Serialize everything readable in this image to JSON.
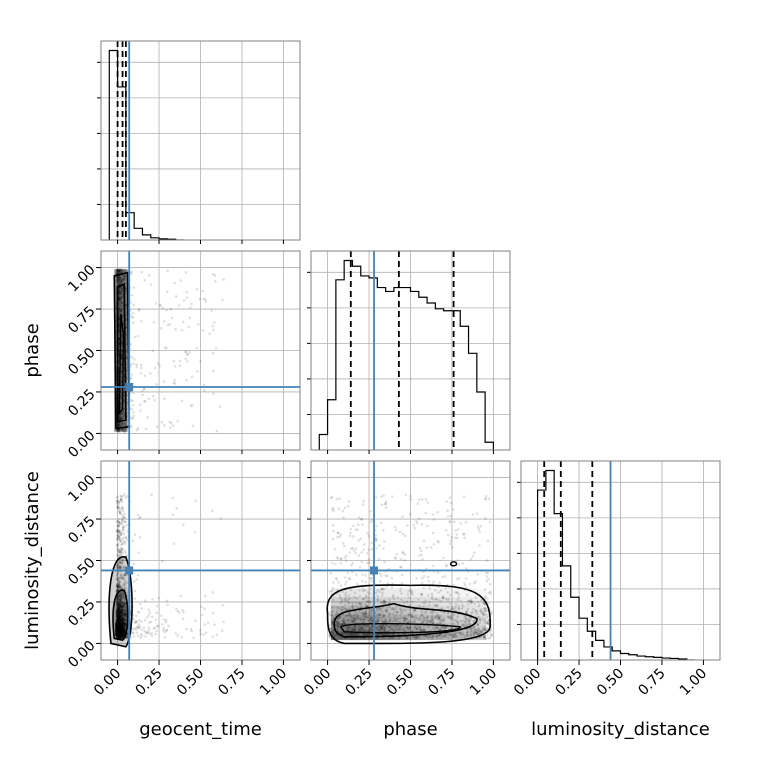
{
  "chart_data": {
    "type": "corner",
    "parameters": [
      "geocent_time",
      "phase",
      "luminosity_distance"
    ],
    "axis_labels": {
      "geocent_time": "geocent_time",
      "phase": "phase",
      "luminosity_distance": "luminosity_distance"
    },
    "tick_values": [
      0.0,
      0.25,
      0.5,
      0.75,
      1.0
    ],
    "tick_labels": [
      "0.00",
      "0.25",
      "0.50",
      "0.75",
      "1.00"
    ],
    "range": [
      -0.1,
      1.1
    ],
    "grid": true,
    "truths": {
      "geocent_time": 0.07,
      "phase": 0.28,
      "luminosity_distance": 0.44
    },
    "truth_color": "#4682b4",
    "quantiles": {
      "geocent_time": [
        0.0,
        0.03,
        0.05
      ],
      "phase": [
        0.14,
        0.43,
        0.76
      ],
      "luminosity_distance": [
        0.04,
        0.14,
        0.33
      ]
    },
    "histograms": {
      "geocent_time": {
        "bin_edges": [
          -0.05,
          0.0,
          0.05,
          0.1,
          0.15,
          0.2,
          0.25,
          0.3,
          0.35,
          0.4
        ],
        "counts": [
          5.2,
          4.2,
          0.75,
          0.32,
          0.14,
          0.06,
          0.03,
          0.02,
          0.0
        ]
      },
      "phase": {
        "bin_edges": [
          -0.05,
          0.0,
          0.05,
          0.1,
          0.15,
          0.2,
          0.25,
          0.3,
          0.35,
          0.4,
          0.45,
          0.5,
          0.55,
          0.6,
          0.65,
          0.7,
          0.75,
          0.8,
          0.85,
          0.9,
          0.95,
          1.0
        ],
        "counts": [
          0.08,
          0.26,
          0.88,
          0.98,
          0.95,
          0.9,
          0.89,
          0.84,
          0.82,
          0.84,
          0.84,
          0.82,
          0.79,
          0.76,
          0.73,
          0.72,
          0.72,
          0.64,
          0.5,
          0.3,
          0.04
        ]
      },
      "luminosity_distance": {
        "bin_edges": [
          0.0,
          0.05,
          0.1,
          0.15,
          0.2,
          0.25,
          0.3,
          0.35,
          0.4,
          0.45,
          0.5,
          0.55,
          0.6,
          0.65,
          0.7,
          0.75,
          0.8,
          0.85,
          0.9,
          0.95
        ],
        "counts": [
          1.3,
          1.45,
          1.12,
          0.72,
          0.48,
          0.32,
          0.22,
          0.15,
          0.1,
          0.07,
          0.05,
          0.04,
          0.03,
          0.025,
          0.02,
          0.015,
          0.012,
          0.008,
          0.0
        ]
      }
    }
  }
}
